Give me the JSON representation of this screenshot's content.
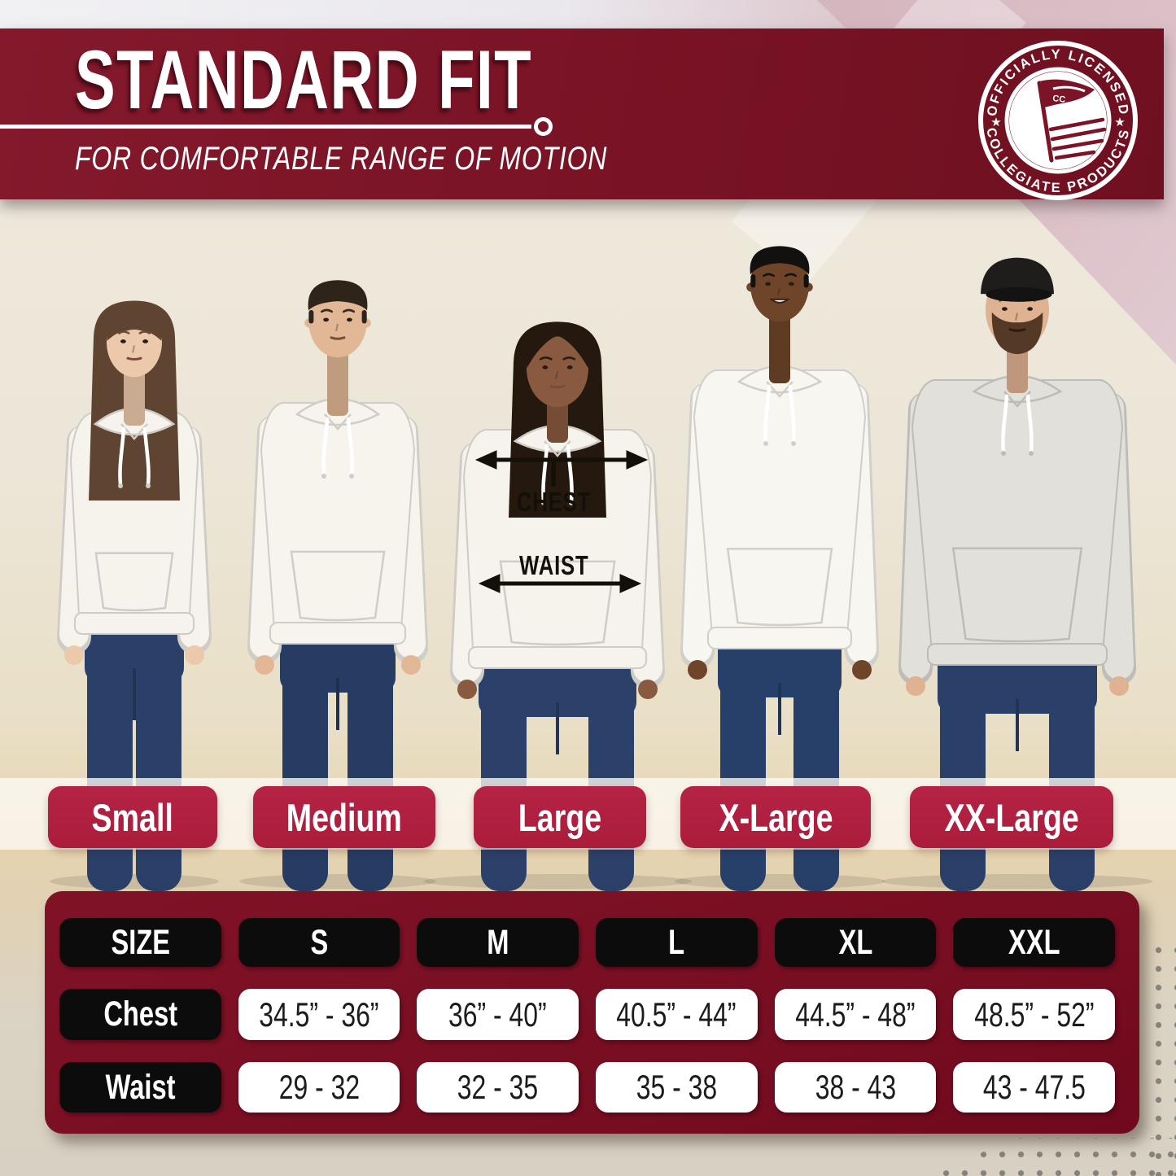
{
  "header": {
    "title": "STANDARD FIT",
    "subtitle": "FOR COMFORTABLE RANGE OF MOTION"
  },
  "badge": {
    "top_text": "OFFICIALLY LICENSED",
    "bottom_text": "COLLEGIATE PRODUCTS",
    "center_monogram": "CC",
    "star": "★"
  },
  "measurement_labels": {
    "chest": "CHEST",
    "waist": "WAIST"
  },
  "size_labels": [
    "Small",
    "Medium",
    "Large",
    "X-Large",
    "XX-Large"
  ],
  "models": [
    {
      "size_label": "Small",
      "description": "woman with long brown hair and bangs, white hoodie, blue jeans",
      "variant": "long-bangs",
      "skin": "#ecc9ab",
      "hair": "#5f4531",
      "hoodie": "#f6f3ed",
      "jeans": "#2a4068"
    },
    {
      "size_label": "Medium",
      "description": "man with short dark slicked-back hair, white hoodie, blue jeans",
      "variant": "short",
      "skin": "#e2b795",
      "hair": "#2f2419",
      "hoodie": "#f7f4ee",
      "jeans": "#273c63"
    },
    {
      "size_label": "Large",
      "description": "woman with long dark hair, white hoodie marked with chest and waist arrows, blue jeans",
      "variant": "long-straight",
      "skin": "#8a5a40",
      "hair": "#24180f",
      "hoodie": "#f6f3ed",
      "jeans": "#2c4169"
    },
    {
      "size_label": "X-Large",
      "description": "smiling man with short black hair, white hoodie, blue jeans",
      "variant": "short-crop",
      "skin": "#6f4529",
      "hair": "#131110",
      "hoodie": "#f8f6f1",
      "jeans": "#27406a"
    },
    {
      "size_label": "XX-Large",
      "description": "bearded man wearing a black cap, light gray hoodie, blue jeans",
      "variant": "cap-beard",
      "skin": "#dfb292",
      "hair": "#543926",
      "hoodie": "#e1e0db",
      "jeans": "#2a4068"
    }
  ],
  "size_table": {
    "columns": [
      "SIZE",
      "S",
      "M",
      "L",
      "XL",
      "XXL"
    ],
    "rows": [
      {
        "label": "Chest",
        "values": [
          "34.5” - 36”",
          "36” - 40”",
          "40.5” - 44”",
          "44.5” - 48”",
          "48.5” - 52”"
        ]
      },
      {
        "label": "Waist",
        "values": [
          "29 - 32",
          "32 - 35",
          "35 - 38",
          "38 - 43",
          "43 - 47.5"
        ]
      }
    ]
  },
  "colors": {
    "banner_maroon": "#7a1426",
    "ribbon_crimson": "#b01f3e",
    "panel_maroon": "#780e22",
    "pill_black": "#0d0c0c",
    "text_white": "#ffffff",
    "backdrop_pink": "#d2b2bb",
    "background_beige": "#e9dfc6",
    "jeans_navy": "#2a4068"
  }
}
